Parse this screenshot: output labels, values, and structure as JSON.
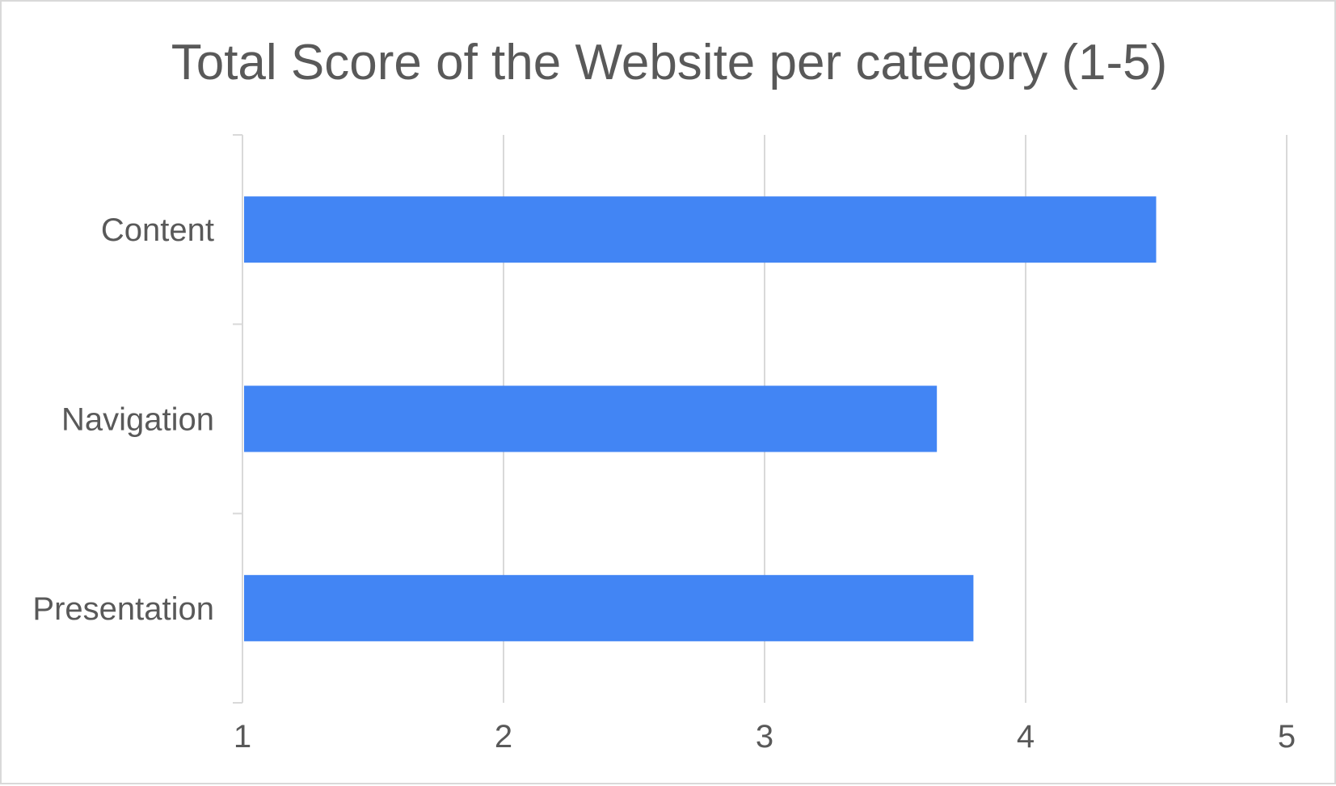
{
  "chart_data": {
    "type": "bar",
    "orientation": "horizontal",
    "title": "Total Score of the Website per category (1-5)",
    "xlabel": "",
    "ylabel": "",
    "categories": [
      "Content",
      "Navigation",
      "Presentation"
    ],
    "values": [
      4.5,
      3.66,
      3.8
    ],
    "xlim": [
      1,
      5
    ],
    "xticks": [
      "1",
      "2",
      "3",
      "4",
      "5"
    ],
    "grid": "vertical",
    "legend": "none",
    "bar_color": "#4285f4",
    "grid_color": "#d9d9d9",
    "text_color": "#595959"
  }
}
